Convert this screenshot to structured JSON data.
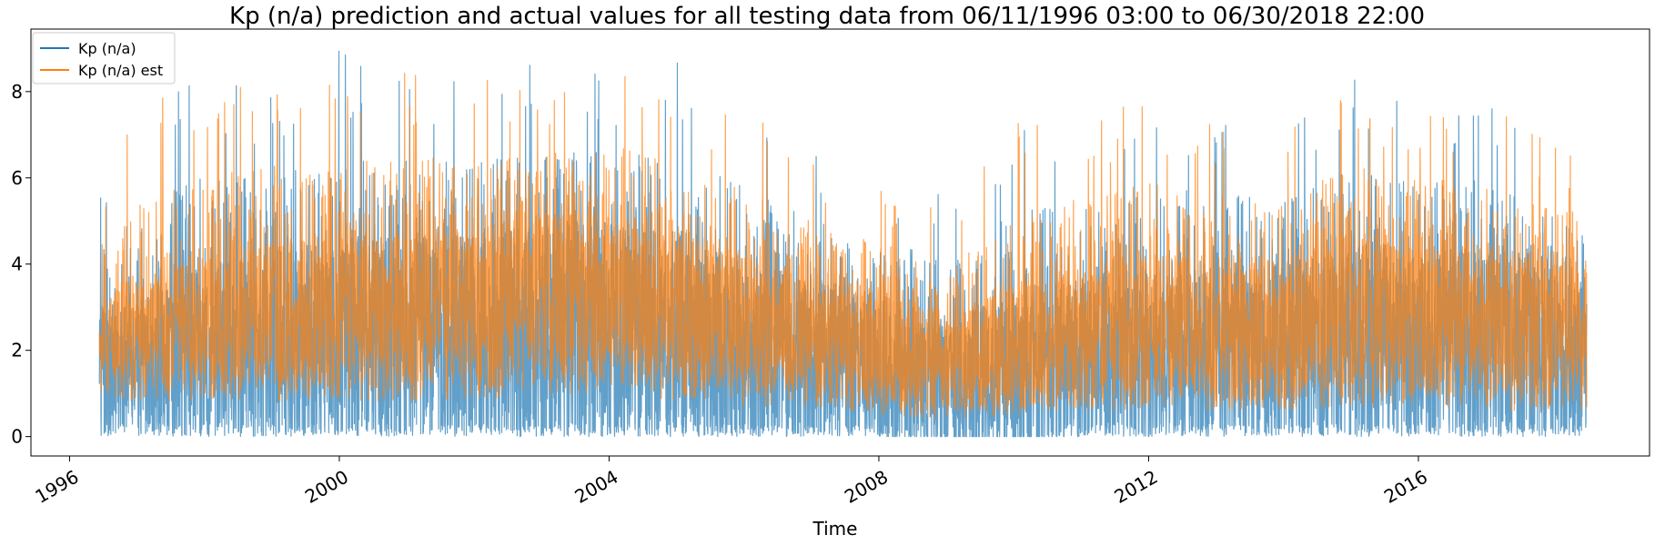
{
  "chart_data": {
    "type": "line",
    "title": "Kp (n/a) prediction and actual values for all testing data from 06/11/1996 03:00 to 06/30/2018 22:00",
    "xlabel": "Time",
    "ylabel": "",
    "x_range": [
      "1996-06-11T03:00",
      "2018-06-30T22:00"
    ],
    "xlim": [
      "1995-06-06",
      "2019-06-06"
    ],
    "ylim": [
      -0.45,
      9.45
    ],
    "x_ticks": [
      "1996",
      "2000",
      "2004",
      "2008",
      "2012",
      "2016"
    ],
    "y_ticks": [
      0,
      2,
      4,
      6,
      8
    ],
    "grid": false,
    "legend_position": "top-left",
    "series": [
      {
        "name": "Kp (n/a)",
        "color": "#1f77b4",
        "year_mid": [
          1996.45,
          1997,
          1998,
          1999,
          2000,
          2001,
          2002,
          2003,
          2004,
          2005,
          2006,
          2007,
          2008,
          2009,
          2010,
          2011,
          2012,
          2013,
          2014,
          2015,
          2016,
          2017,
          2018.49
        ],
        "typical_low": [
          0.3,
          0.3,
          0.3,
          0.3,
          0.3,
          0.3,
          0.3,
          0.3,
          0.3,
          0.3,
          0.3,
          0.3,
          0.3,
          0.0,
          0.0,
          0.3,
          0.3,
          0.3,
          0.3,
          0.3,
          0.3,
          0.3,
          0.3
        ],
        "typical_high": [
          3.0,
          3.3,
          4.0,
          4.3,
          4.7,
          4.7,
          4.7,
          5.0,
          5.0,
          4.7,
          4.0,
          3.7,
          3.3,
          2.7,
          3.3,
          3.7,
          4.0,
          4.0,
          4.0,
          4.7,
          4.3,
          4.3,
          3.7
        ],
        "peak_max": [
          6.0,
          7.3,
          8.7,
          8.3,
          9.0,
          8.7,
          8.7,
          8.7,
          8.7,
          8.7,
          8.3,
          7.0,
          6.3,
          5.7,
          7.7,
          8.0,
          8.0,
          7.7,
          7.3,
          8.3,
          7.7,
          8.3,
          6.0
        ]
      },
      {
        "name": "Kp (n/a) est",
        "color": "#ff7f0e",
        "year_mid": [
          1996.45,
          1997,
          1998,
          1999,
          2000,
          2001,
          2002,
          2003,
          2004,
          2005,
          2006,
          2007,
          2008,
          2009,
          2010,
          2011,
          2012,
          2013,
          2014,
          2015,
          2016,
          2017,
          2018.49
        ],
        "typical_low": [
          1.0,
          0.8,
          0.8,
          0.8,
          0.8,
          0.8,
          0.8,
          1.0,
          1.0,
          0.8,
          0.7,
          0.6,
          0.5,
          0.4,
          0.5,
          0.6,
          0.6,
          0.6,
          0.6,
          0.7,
          0.7,
          0.6,
          0.6
        ],
        "typical_high": [
          3.3,
          3.5,
          4.2,
          4.5,
          4.8,
          4.8,
          4.8,
          5.2,
          5.2,
          4.8,
          4.2,
          3.8,
          3.5,
          2.8,
          3.5,
          3.8,
          4.2,
          4.2,
          4.2,
          4.8,
          4.5,
          4.5,
          4.0
        ],
        "peak_max": [
          6.0,
          7.7,
          8.2,
          8.5,
          8.7,
          8.7,
          8.7,
          8.3,
          8.7,
          8.3,
          7.7,
          6.5,
          5.8,
          5.2,
          7.3,
          7.7,
          8.0,
          7.3,
          7.0,
          8.3,
          7.7,
          7.9,
          6.5
        ]
      }
    ]
  }
}
